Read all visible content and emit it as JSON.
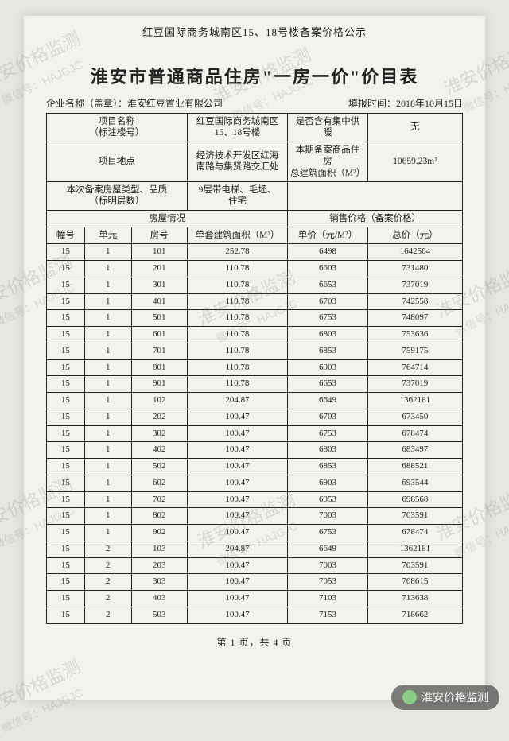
{
  "header_small": "红豆国际商务城南区15、18号楼备案价格公示",
  "title": "淮安市普通商品住房\"一房一价\"价目表",
  "company_label": "企业名称（盖章）：",
  "company_name": "淮安红豆置业有限公司",
  "report_label": "填报时间：",
  "report_date": "2018年10月15日",
  "info": {
    "project_name_label": "项目名称\n（标注楼号）",
    "project_name": "红豆国际商务城南区\n15、18号楼",
    "heating_label": "是否含有集中供\n暖",
    "heating_value": "无",
    "location_label": "项目地点",
    "location_value": "经济技术开发区红海\n南路与集贤路交汇处",
    "period_label": "本期备案商品住\n房\n总建筑面积（M²）",
    "period_value": "10659.23m²",
    "type_label": "本次备案房屋类型、品质\n（标明层数）",
    "type_value": "9层带电梯、毛坯、\n住宅",
    "housing_section": "房屋情况",
    "price_section": "销售价格（备案价格）",
    "col_building": "幢号",
    "col_unit": "单元",
    "col_room": "房号",
    "col_area": "单套建筑面积（M²）",
    "col_unitprice": "单价（元/M²）",
    "col_total": "总价（元）"
  },
  "rows": [
    {
      "b": "15",
      "u": "1",
      "r": "101",
      "a": "252.78",
      "p": "6498",
      "t": "1642564"
    },
    {
      "b": "15",
      "u": "1",
      "r": "201",
      "a": "110.78",
      "p": "6603",
      "t": "731480"
    },
    {
      "b": "15",
      "u": "1",
      "r": "301",
      "a": "110.78",
      "p": "6653",
      "t": "737019"
    },
    {
      "b": "15",
      "u": "1",
      "r": "401",
      "a": "110.78",
      "p": "6703",
      "t": "742558"
    },
    {
      "b": "15",
      "u": "1",
      "r": "501",
      "a": "110.78",
      "p": "6753",
      "t": "748097"
    },
    {
      "b": "15",
      "u": "1",
      "r": "601",
      "a": "110.78",
      "p": "6803",
      "t": "753636"
    },
    {
      "b": "15",
      "u": "1",
      "r": "701",
      "a": "110.78",
      "p": "6853",
      "t": "759175"
    },
    {
      "b": "15",
      "u": "1",
      "r": "801",
      "a": "110.78",
      "p": "6903",
      "t": "764714"
    },
    {
      "b": "15",
      "u": "1",
      "r": "901",
      "a": "110.78",
      "p": "6653",
      "t": "737019"
    },
    {
      "b": "15",
      "u": "1",
      "r": "102",
      "a": "204.87",
      "p": "6649",
      "t": "1362181"
    },
    {
      "b": "15",
      "u": "1",
      "r": "202",
      "a": "100.47",
      "p": "6703",
      "t": "673450"
    },
    {
      "b": "15",
      "u": "1",
      "r": "302",
      "a": "100.47",
      "p": "6753",
      "t": "678474"
    },
    {
      "b": "15",
      "u": "1",
      "r": "402",
      "a": "100.47",
      "p": "6803",
      "t": "683497"
    },
    {
      "b": "15",
      "u": "1",
      "r": "502",
      "a": "100.47",
      "p": "6853",
      "t": "688521"
    },
    {
      "b": "15",
      "u": "1",
      "r": "602",
      "a": "100.47",
      "p": "6903",
      "t": "693544"
    },
    {
      "b": "15",
      "u": "1",
      "r": "702",
      "a": "100.47",
      "p": "6953",
      "t": "698568"
    },
    {
      "b": "15",
      "u": "1",
      "r": "802",
      "a": "100.47",
      "p": "7003",
      "t": "703591"
    },
    {
      "b": "15",
      "u": "1",
      "r": "902",
      "a": "100.47",
      "p": "6753",
      "t": "678474"
    },
    {
      "b": "15",
      "u": "2",
      "r": "103",
      "a": "204.87",
      "p": "6649",
      "t": "1362181"
    },
    {
      "b": "15",
      "u": "2",
      "r": "203",
      "a": "100.47",
      "p": "7003",
      "t": "703591"
    },
    {
      "b": "15",
      "u": "2",
      "r": "303",
      "a": "100.47",
      "p": "7053",
      "t": "708615"
    },
    {
      "b": "15",
      "u": "2",
      "r": "403",
      "a": "100.47",
      "p": "7103",
      "t": "713638"
    },
    {
      "b": "15",
      "u": "2",
      "r": "503",
      "a": "100.47",
      "p": "7153",
      "t": "718662"
    }
  ],
  "footer": "第 1 页，共 4 页",
  "watermark_main": "淮安价格监测",
  "watermark_sub": "微信号：HAJGJC",
  "badge_text": "淮安价格监测"
}
